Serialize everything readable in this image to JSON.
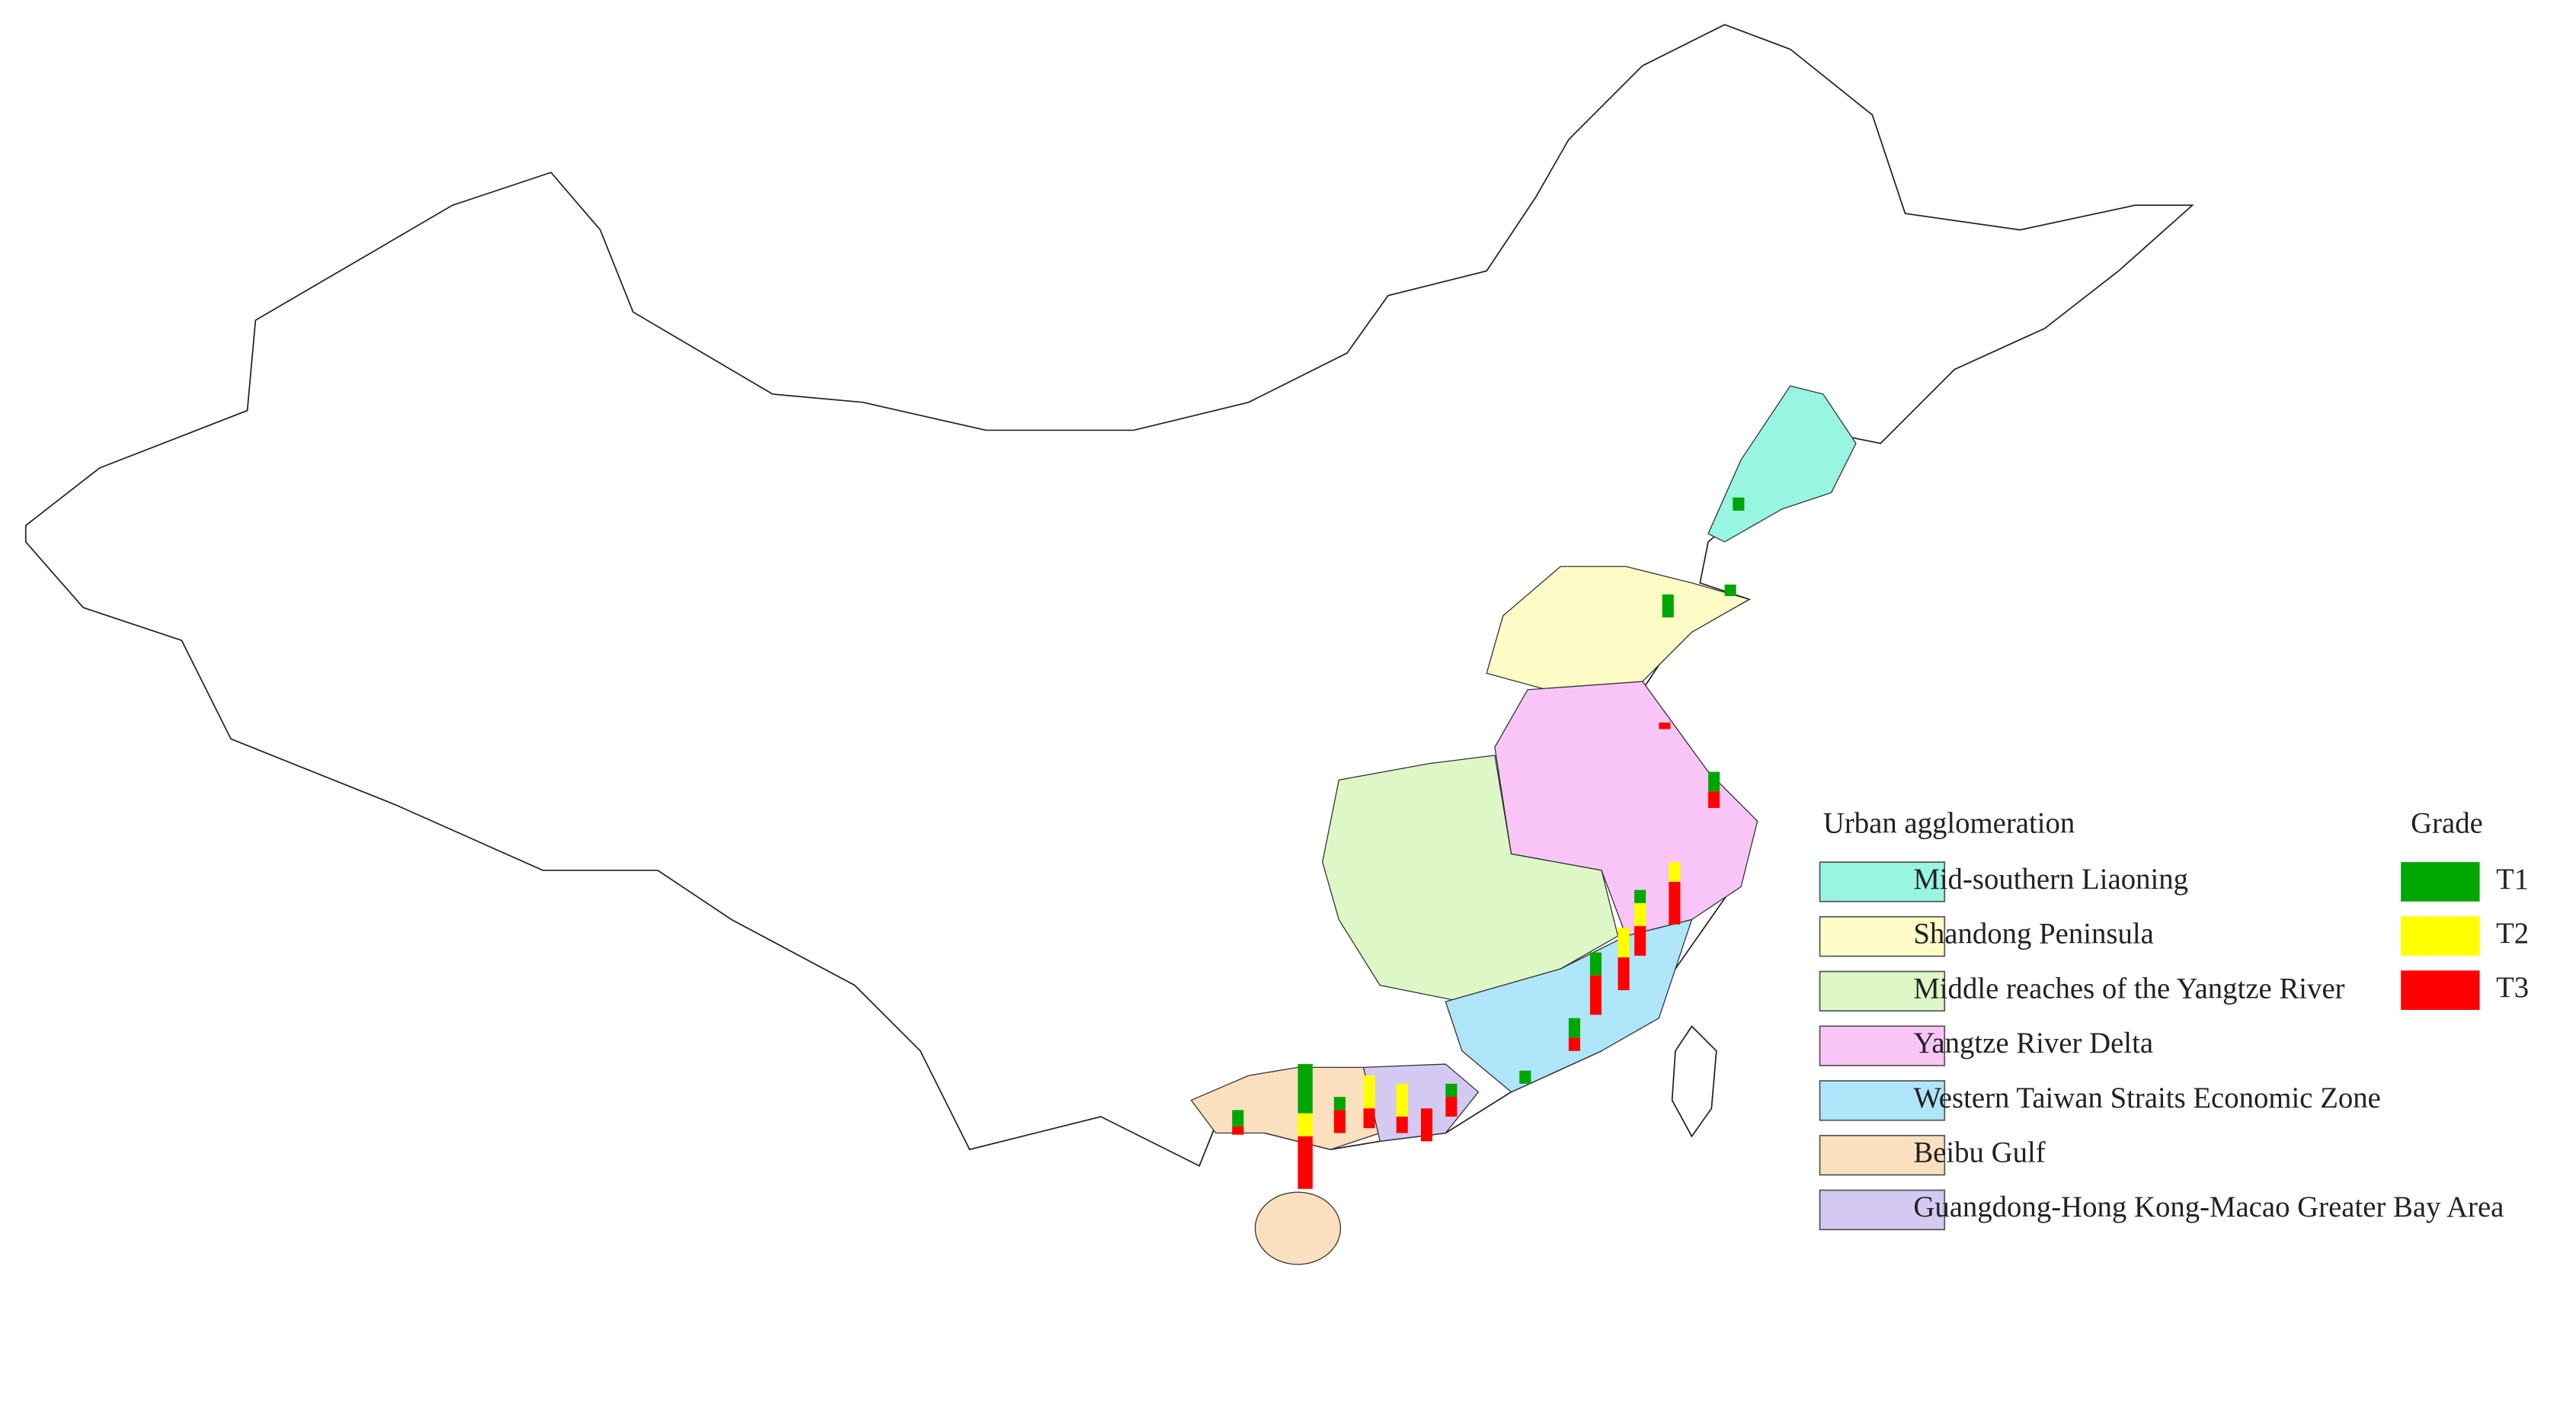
{
  "legend": {
    "regions_title": "Urban agglomeration",
    "regions": [
      {
        "label": "Mid-southern Liaoning",
        "color": "#98f5e1"
      },
      {
        "label": "Shandong Peninsula",
        "color": "#fdfcc6"
      },
      {
        "label": "Middle reaches of the Yangtze River",
        "color": "#ddf8c6"
      },
      {
        "label": "Yangtze River Delta",
        "color": "#f9c5f7"
      },
      {
        "label": "Western Taiwan Straits Economic Zone",
        "color": "#aee5f8"
      },
      {
        "label": "Beibu Gulf",
        "color": "#fae0be"
      },
      {
        "label": "Guangdong-Hong Kong-Macao Greater Bay Area",
        "color": "#d4c9f1"
      }
    ],
    "grade_title": "Grade",
    "grades": [
      {
        "label": "T1",
        "color": "#00a600"
      },
      {
        "label": "T2",
        "color": "#ffff00"
      },
      {
        "label": "T3",
        "color": "#ff0000"
      }
    ]
  }
}
